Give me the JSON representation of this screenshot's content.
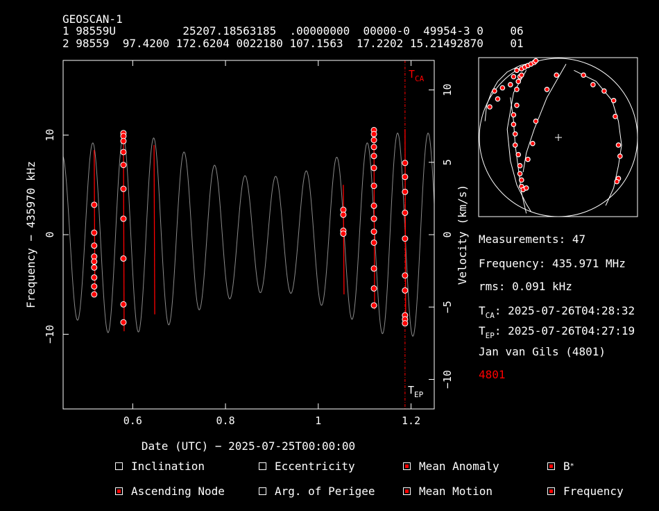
{
  "tle": {
    "name": "GEOSCAN-1",
    "line1": "1 98559U          25207.18563185  .00000000  00000-0  49954-3 0    06",
    "line2": "2 98559  97.4200 172.6204 0022180 107.1563  17.2202 15.21492870    01"
  },
  "chart_data": {
    "type": "scatter",
    "xlabel": "Date (UTC) − 2025-07-25T00:00:00",
    "ylabel": "Frequency − 435970 kHz",
    "y2label": "Velocity (km/s)",
    "xlim": [
      0.45,
      1.25
    ],
    "ylim": [
      -17.5,
      17.5
    ],
    "y2lim": [
      -12.04,
      12.04
    ],
    "xticks": [
      0.6,
      0.8,
      1.0,
      1.2
    ],
    "xticklabels": [
      "0.6",
      "0.8",
      "1",
      "1.2"
    ],
    "yticks": [
      -10,
      0,
      10
    ],
    "yticklabels": [
      "−10",
      "0",
      "10"
    ],
    "y2ticks": [
      -10,
      -5,
      0,
      5,
      10
    ],
    "y2ticklabels": [
      "−10",
      "−5",
      "0",
      "5",
      "10"
    ],
    "tca_label": "T",
    "tca_sub": "CA",
    "tep_label": "T",
    "tep_sub": "EP",
    "tca_x": 1.187,
    "model_curve": {
      "period_days": 0.06573,
      "phase_x": 0.448,
      "amplitudes": [
        [
          0.45,
          8.0
        ],
        [
          0.55,
          9.9
        ],
        [
          0.65,
          9.7
        ],
        [
          0.75,
          7.4
        ],
        [
          0.85,
          5.8
        ],
        [
          0.95,
          5.9
        ],
        [
          1.05,
          8.0
        ],
        [
          1.15,
          10.2
        ],
        [
          1.25,
          10.2
        ]
      ]
    },
    "passes": [
      {
        "x": 0.517,
        "ymin": -6.2,
        "ymax": 8.5
      },
      {
        "x": 0.58,
        "ymin": -9.7,
        "ymax": 10.3
      },
      {
        "x": 0.646,
        "ymin": -8.0,
        "ymax": 9.0
      },
      {
        "x": 1.054,
        "ymin": -6.0,
        "ymax": 5.0
      },
      {
        "x": 1.12,
        "ymin": -7.5,
        "ymax": 10.6
      },
      {
        "x": 1.187,
        "ymin": -9.0,
        "ymax": 10.6
      }
    ],
    "measurements": [
      [
        0.517,
        3.0
      ],
      [
        0.517,
        0.2
      ],
      [
        0.517,
        -1.1
      ],
      [
        0.517,
        -2.2
      ],
      [
        0.517,
        -2.7
      ],
      [
        0.517,
        -3.3
      ],
      [
        0.517,
        -4.3
      ],
      [
        0.517,
        -5.2
      ],
      [
        0.517,
        -6.0
      ],
      [
        0.58,
        10.2
      ],
      [
        0.58,
        9.9
      ],
      [
        0.58,
        9.4
      ],
      [
        0.58,
        8.3
      ],
      [
        0.58,
        7.0
      ],
      [
        0.58,
        4.6
      ],
      [
        0.58,
        1.6
      ],
      [
        0.58,
        -2.4
      ],
      [
        0.58,
        -7.0
      ],
      [
        0.58,
        -8.8
      ],
      [
        1.054,
        2.5
      ],
      [
        1.054,
        2.0
      ],
      [
        1.054,
        0.4
      ],
      [
        1.054,
        0.1
      ],
      [
        1.12,
        10.5
      ],
      [
        1.12,
        10.1
      ],
      [
        1.12,
        9.5
      ],
      [
        1.12,
        8.8
      ],
      [
        1.12,
        7.9
      ],
      [
        1.12,
        6.7
      ],
      [
        1.12,
        4.9
      ],
      [
        1.12,
        2.9
      ],
      [
        1.12,
        1.6
      ],
      [
        1.12,
        0.3
      ],
      [
        1.12,
        -0.8
      ],
      [
        1.12,
        -3.4
      ],
      [
        1.12,
        -5.4
      ],
      [
        1.12,
        -7.1
      ],
      [
        1.187,
        7.2
      ],
      [
        1.187,
        5.8
      ],
      [
        1.187,
        4.3
      ],
      [
        1.187,
        2.2
      ],
      [
        1.187,
        -0.4
      ],
      [
        1.187,
        -4.1
      ],
      [
        1.187,
        -5.6
      ],
      [
        1.187,
        -8.1
      ],
      [
        1.187,
        -8.5
      ],
      [
        1.187,
        -8.9
      ]
    ],
    "colors": {
      "measurement": "#ff0000",
      "fit": "#ff0000",
      "model": "#8a8a8a",
      "axis": "#ffffff"
    }
  },
  "skyplot": {
    "tracks": [
      [
        [
          0.04,
          0.4
        ],
        [
          0.05,
          0.3
        ],
        [
          0.08,
          0.22
        ],
        [
          0.12,
          0.15
        ],
        [
          0.18,
          0.09
        ],
        [
          0.26,
          0.05
        ],
        [
          0.34,
          0.03
        ],
        [
          0.38,
          0.02
        ]
      ],
      [
        [
          0.2,
          0.25
        ],
        [
          0.22,
          0.4
        ],
        [
          0.23,
          0.55
        ],
        [
          0.25,
          0.7
        ],
        [
          0.27,
          0.85
        ],
        [
          0.3,
          0.98
        ]
      ],
      [
        [
          0.3,
          0.08
        ],
        [
          0.22,
          0.22
        ],
        [
          0.18,
          0.45
        ],
        [
          0.2,
          0.65
        ],
        [
          0.24,
          0.8
        ],
        [
          0.3,
          0.92
        ],
        [
          0.33,
          0.97
        ]
      ],
      [
        [
          0.55,
          0.04
        ],
        [
          0.43,
          0.25
        ],
        [
          0.35,
          0.45
        ],
        [
          0.3,
          0.6
        ],
        [
          0.28,
          0.72
        ]
      ],
      [
        [
          0.6,
          0.08
        ],
        [
          0.74,
          0.15
        ],
        [
          0.84,
          0.27
        ],
        [
          0.88,
          0.4
        ],
        [
          0.9,
          0.55
        ],
        [
          0.88,
          0.68
        ],
        [
          0.85,
          0.82
        ],
        [
          0.8,
          0.93
        ]
      ]
    ],
    "points": [
      [
        0.1,
        0.21
      ],
      [
        0.12,
        0.26
      ],
      [
        0.07,
        0.31
      ],
      [
        0.15,
        0.19
      ],
      [
        0.2,
        0.17
      ],
      [
        0.22,
        0.12
      ],
      [
        0.24,
        0.08
      ],
      [
        0.27,
        0.07
      ],
      [
        0.29,
        0.06
      ],
      [
        0.31,
        0.05
      ],
      [
        0.33,
        0.04
      ],
      [
        0.35,
        0.03
      ],
      [
        0.36,
        0.02
      ],
      [
        0.22,
        0.36
      ],
      [
        0.22,
        0.42
      ],
      [
        0.23,
        0.48
      ],
      [
        0.23,
        0.55
      ],
      [
        0.25,
        0.61
      ],
      [
        0.26,
        0.68
      ],
      [
        0.26,
        0.73
      ],
      [
        0.27,
        0.77
      ],
      [
        0.27,
        0.81
      ],
      [
        0.28,
        0.83
      ],
      [
        0.3,
        0.82
      ],
      [
        0.24,
        0.2
      ],
      [
        0.25,
        0.15
      ],
      [
        0.26,
        0.12
      ],
      [
        0.27,
        0.11
      ],
      [
        0.24,
        0.3
      ],
      [
        0.36,
        0.4
      ],
      [
        0.34,
        0.54
      ],
      [
        0.31,
        0.64
      ],
      [
        0.49,
        0.11
      ],
      [
        0.43,
        0.2
      ],
      [
        0.66,
        0.11
      ],
      [
        0.72,
        0.17
      ],
      [
        0.79,
        0.21
      ],
      [
        0.85,
        0.27
      ],
      [
        0.86,
        0.37
      ],
      [
        0.88,
        0.55
      ],
      [
        0.89,
        0.62
      ],
      [
        0.88,
        0.76
      ],
      [
        0.87,
        0.78
      ]
    ]
  },
  "info": {
    "measurements": "Measurements: 47",
    "frequency": "Frequency: 435.971 MHz",
    "rms": "rms: 0.091 kHz",
    "tca_main": "T",
    "tca_sub": "CA",
    "tca_value": ": 2025-07-26T04:28:32",
    "tep_main": "T",
    "tep_sub": "EP",
    "tep_value": ": 2025-07-26T04:27:19",
    "observer": "Jan van Gils (4801)",
    "site_id": "4801"
  },
  "controls": [
    {
      "label": "Inclination",
      "checked": false
    },
    {
      "label": "Eccentricity",
      "checked": false
    },
    {
      "label": "Mean Anomaly",
      "checked": true
    },
    {
      "label": "B",
      "sup": "*",
      "checked": true
    },
    {
      "label": "Ascending Node",
      "checked": true
    },
    {
      "label": "Arg. of Perigee",
      "checked": false
    },
    {
      "label": "Mean Motion",
      "checked": true
    },
    {
      "label": "Frequency",
      "checked": true
    }
  ]
}
